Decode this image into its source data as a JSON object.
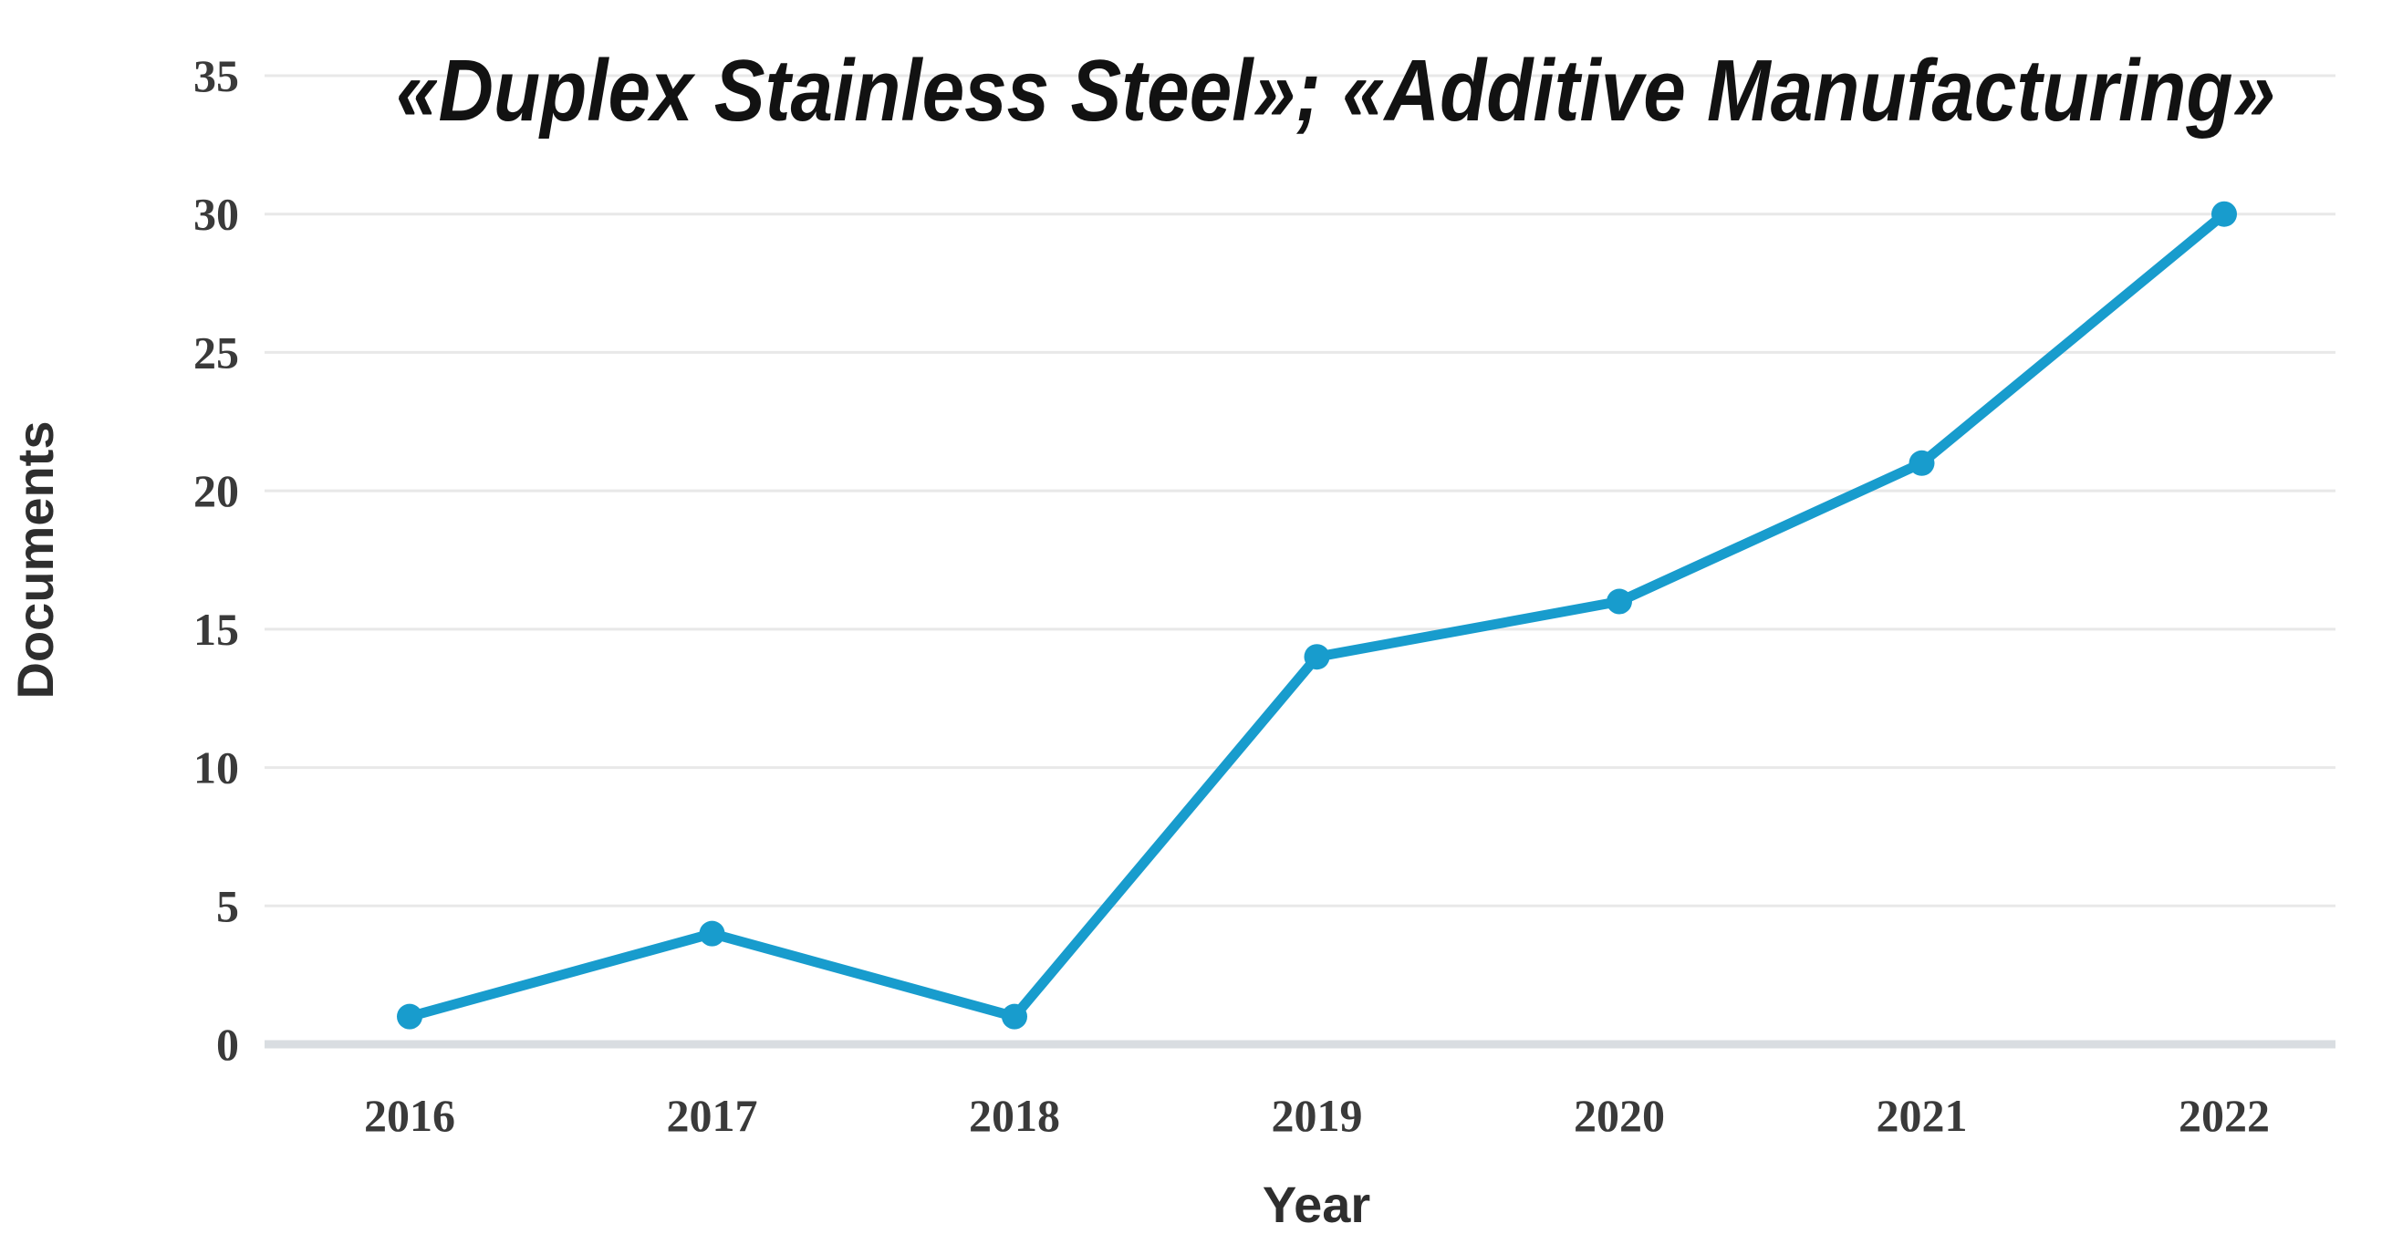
{
  "chart_data": {
    "type": "line",
    "title": "«Duplex Stainless Steel»; «Additive Manufacturing»",
    "xlabel": "Year",
    "ylabel": "Documents",
    "categories": [
      "2016",
      "2017",
      "2018",
      "2019",
      "2020",
      "2021",
      "2022"
    ],
    "series": [
      {
        "name": "Documents",
        "values": [
          1,
          4,
          1,
          14,
          16,
          21,
          30
        ]
      }
    ],
    "ylim": [
      0,
      35
    ],
    "yticks": [
      0,
      5,
      10,
      15,
      20,
      25,
      30,
      35
    ],
    "grid": "horizontal-only",
    "legend_position": "none",
    "line_color": "#189ccd",
    "marker": "circle",
    "grid_color": "#e8e8e8",
    "baseline_color": "#d9dde1",
    "tick_text_color": "#3a3a3a",
    "axis_title_color": "#2e2e2e",
    "title_color": "#121212",
    "background_color": "#ffffff"
  }
}
